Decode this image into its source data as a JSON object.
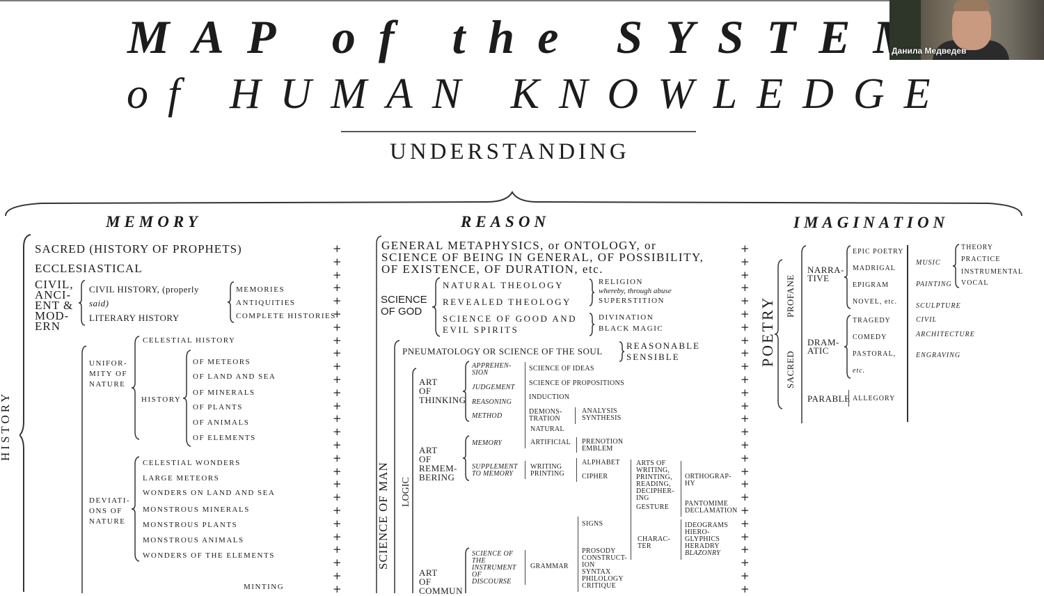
{
  "title": {
    "line1": "MAP of the SYSTEM",
    "line2": "of HUMAN KNOWLEDGE",
    "root": "UNDERSTANDING"
  },
  "columns": {
    "memory": "MEMORY",
    "reason": "REASON",
    "imagination": "IMAGINATION"
  },
  "memory": {
    "history": "HISTORY",
    "sacred": "SACRED (HISTORY OF PROPHETS)",
    "ecclesiastical": "ECCLESIASTICAL",
    "civil_group": [
      "CIVIL,",
      "ANCI-",
      "ENT &",
      "MOD-",
      "ERN"
    ],
    "civil_history_1": "CIVIL HISTORY, (properly",
    "civil_history_2": "said)",
    "literary": "LITERARY HISTORY",
    "civil_sub": [
      "MEMORIES",
      "ANTIQUITIES",
      "COMPLETE HISTORIES"
    ],
    "uniformity": [
      "UNIFOR-",
      "MITY OF",
      "NATURE"
    ],
    "celestial_history": "CELESTIAL HISTORY",
    "history_label": "HISTORY",
    "history_of": [
      "OF METEORS",
      "OF LAND AND SEA",
      "OF MINERALS",
      "OF PLANTS",
      "OF ANIMALS",
      "OF ELEMENTS"
    ],
    "deviations": [
      "DEVIATI-",
      "ONS OF",
      "NATURE"
    ],
    "wonders": [
      "CELESTIAL WONDERS",
      "LARGE METEORS",
      "WONDERS ON LAND AND SEA",
      "MONSTROUS MINERALS",
      "MONSTROUS PLANTS",
      "MONSTROUS ANIMALS",
      "WONDERS OF THE ELEMENTS"
    ],
    "minting": "MINTING"
  },
  "reason": {
    "metaphysics": [
      "GENERAL METAPHYSICS, or ONTOLOGY, or",
      "SCIENCE OF BEING IN GENERAL, OF POSSIBILITY,",
      "OF EXISTENCE, OF DURATION, etc."
    ],
    "science_of_god": [
      "SCIENCE",
      "OF GOD"
    ],
    "theology": [
      "NATURAL THEOLOGY",
      "REVEALED THEOLOGY",
      "SCIENCE OF GOOD AND",
      "EVIL SPIRITS"
    ],
    "religion": "RELIGION",
    "whereby": "whereby, through abuse",
    "superstition": "SUPERSTITION",
    "divination": "DIVINATION",
    "black_magic": "BLACK MAGIC",
    "pneumatology": "PNEUMATOLOGY OR SCIENCE OF THE SOUL",
    "reasonable": "REASONABLE",
    "sensible": "SENSIBLE",
    "science_of_man": "SCIENCE OF MAN",
    "logic": "LOGIC",
    "art_thinking": [
      "ART",
      "OF",
      "THINKING"
    ],
    "thinking_items": [
      "APPREHEN-",
      "SION",
      "JUDGEMENT",
      "REASONING",
      "METHOD"
    ],
    "thinking_results": [
      "SCIENCE OF IDEAS",
      "SCIENCE OF PROPOSITIONS",
      "INDUCTION",
      "DEMONS-",
      "TRATION"
    ],
    "analysis": "ANALYSIS",
    "synthesis": "SYNTHESIS",
    "art_remembering": [
      "ART",
      "OF",
      "REMEM-",
      "BERING"
    ],
    "memory_label": "MEMORY",
    "natural": "NATURAL",
    "artificial": "ARTIFICIAL",
    "prenotion": "PRENOTION",
    "emblem": "EMBLEM",
    "supplement": [
      "SUPPLEMENT",
      "TO MEMORY"
    ],
    "writing": "WRITING",
    "printing": "PRINTING",
    "alphabet": "ALPHABET",
    "cipher": "CIPHER",
    "arts_of": [
      "ARTS OF",
      "WRITING,",
      "PRINTING,",
      "READING,",
      "DECIPHER-",
      "ING"
    ],
    "orthography": [
      "ORTHOGRAP-",
      "HY"
    ],
    "gesture": "GESTURE",
    "pantomime": "PANTOMIME",
    "declamation": "DECLAMATION",
    "signs": "SIGNS",
    "character": [
      "CHARAC-",
      "TER"
    ],
    "ideograms": [
      "IDEOGRAMS",
      "HIERO-",
      "GLYPHICS",
      "HERADRY",
      "BLAZONRY"
    ],
    "art_comm": [
      "ART",
      "OF",
      "COMMUN"
    ],
    "science_instrument": [
      "SCIENCE OF",
      "THE",
      "INSTRUMENT",
      "OF",
      "DISCOURSE"
    ],
    "grammar": "GRAMMAR",
    "grammar_items": [
      "PROSODY",
      "CONSTRUCT-",
      "ION",
      "SYNTAX",
      "PHILOLOGY",
      "CRITIQUE"
    ]
  },
  "imagination": {
    "poetry": "POETRY",
    "profane": "PROFANE",
    "sacred": "SACRED",
    "narrative": [
      "NARRA-",
      "TIVE"
    ],
    "narrative_items": [
      "EPIC POETRY",
      "MADRIGAL",
      "EPIGRAM",
      "NOVEL, etc."
    ],
    "dramatic": [
      "DRAM-",
      "ATIC"
    ],
    "dramatic_items": [
      "TRAGEDY",
      "COMEDY",
      "PASTORAL,",
      "etc."
    ],
    "parable": "PARABLE",
    "allegory": "ALLEGORY",
    "music": "MUSIC",
    "music_items": [
      "THEORY",
      "PRACTICE",
      "INSTRUMENTAL",
      "VOCAL"
    ],
    "painting": "PAINTING",
    "sculpture": "SCULPTURE",
    "civil": "CIVIL",
    "architecture": "ARCHITECTURE",
    "engraving": "ENGRAVING"
  },
  "plus_sign": "+",
  "participant": {
    "name": "Данила Медведев"
  }
}
